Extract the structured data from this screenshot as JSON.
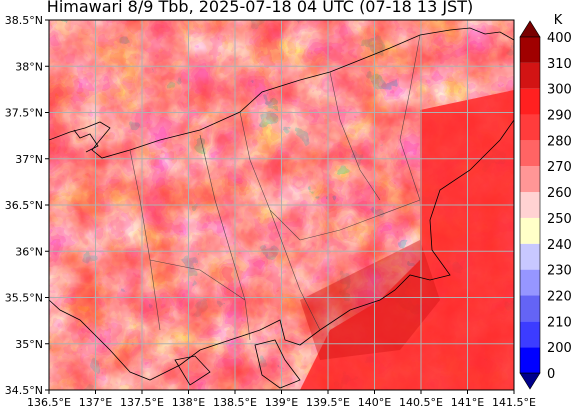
{
  "title": "Himawari 8/9 Tbb, 2025-07-18 04 UTC (07-18 13 JST)",
  "map": {
    "lon_range": [
      136.5,
      141.5
    ],
    "lat_range": [
      34.5,
      38.5
    ],
    "lon_ticks": [
      "136.5°E",
      "137°E",
      "137.5°E",
      "138°E",
      "138.5°E",
      "139°E",
      "139.5°E",
      "140°E",
      "140.5°E",
      "141°E",
      "141.5°E"
    ],
    "lat_ticks": [
      "34.5°N",
      "35°N",
      "35.5°N",
      "36°N",
      "36.5°N",
      "37°N",
      "37.5°N",
      "38°N",
      "38.5°N"
    ],
    "grid": true
  },
  "colorbar": {
    "unit": "K",
    "levels": [
      "0",
      "200",
      "210",
      "220",
      "230",
      "240",
      "250",
      "260",
      "270",
      "280",
      "290",
      "300",
      "310",
      "400"
    ],
    "colors": [
      "#00008b",
      "#0000ff",
      "#3c3cff",
      "#6464f5",
      "#9696ff",
      "#c8c8ff",
      "#ffffc8",
      "#ffd2d2",
      "#ff9696",
      "#ff6464",
      "#ff3c3c",
      "#ff2020",
      "#d21414",
      "#a00000",
      "#780000"
    ]
  }
}
